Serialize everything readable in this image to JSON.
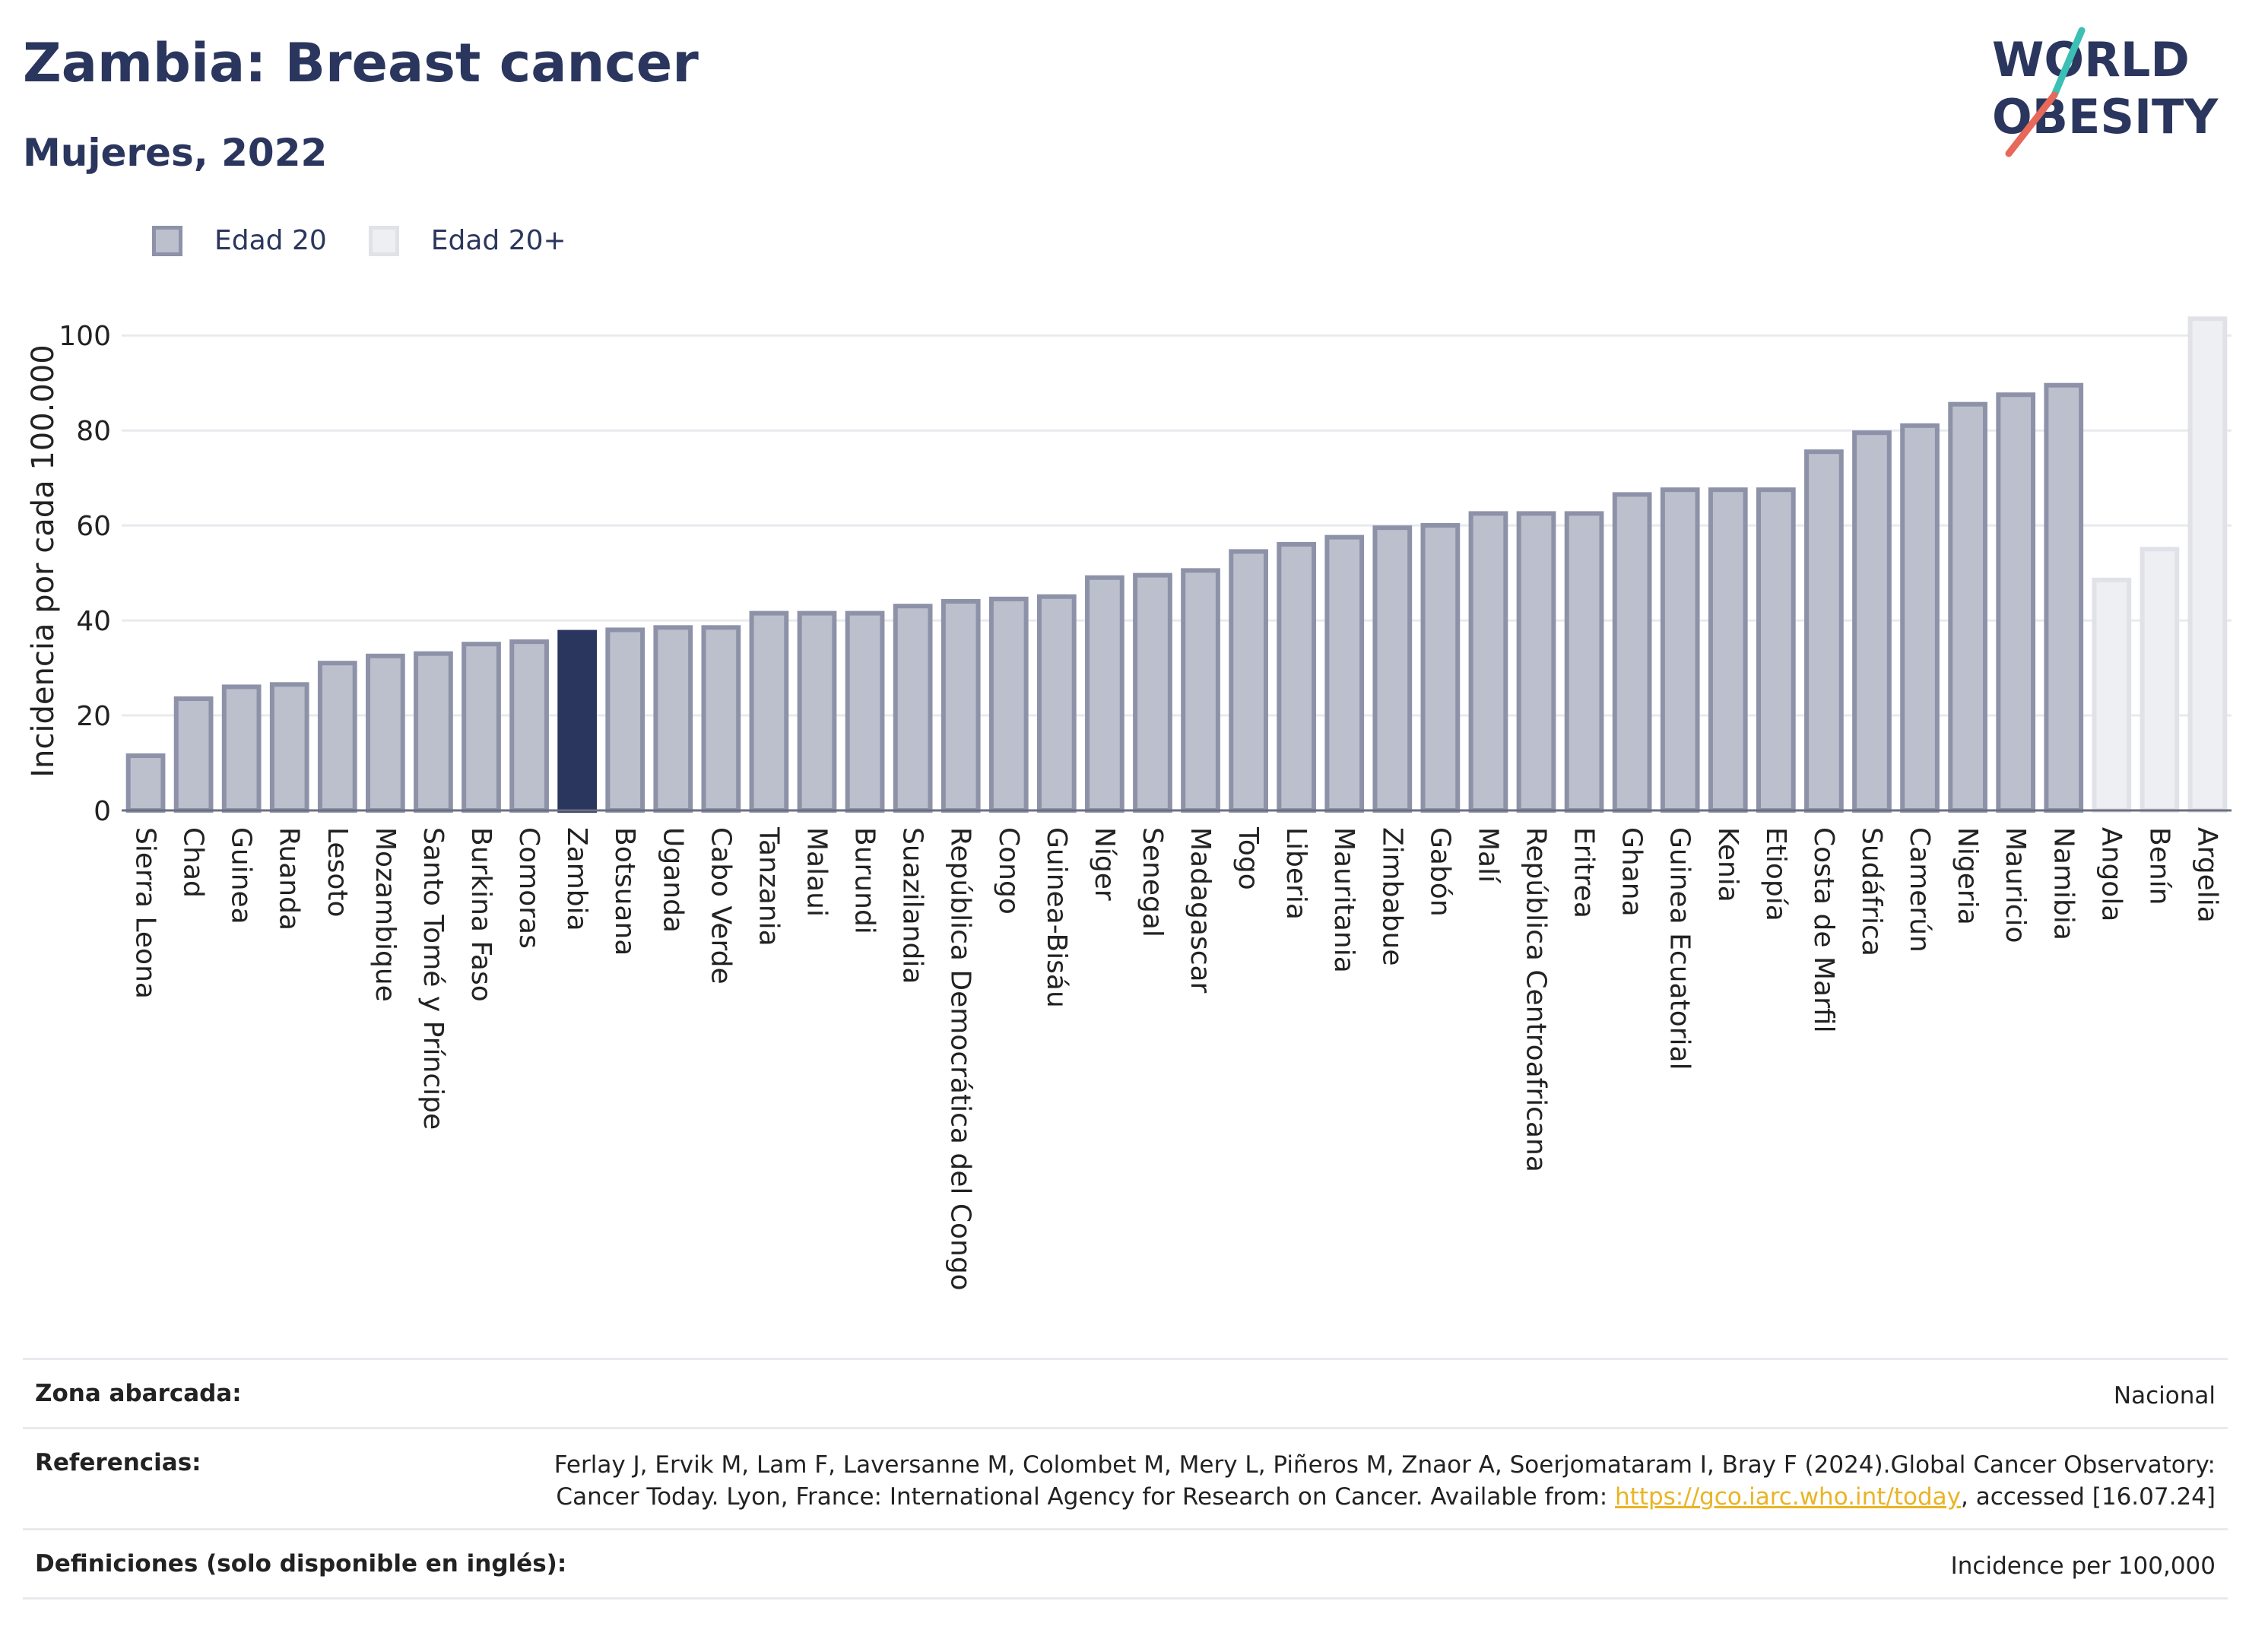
{
  "header": {
    "title": "Zambia: Breast cancer",
    "subtitle": "Mujeres, 2022"
  },
  "logo": {
    "line1": "WORLD",
    "line2": "OBESITY",
    "colors": [
      "#2b365e",
      "#3cbfb4",
      "#e8685a"
    ]
  },
  "legend": [
    {
      "label": "Edad 20",
      "color": "#bcbfcc"
    },
    {
      "label": "Edad 20+",
      "color": "#eeeff3"
    }
  ],
  "chart_data": {
    "type": "bar",
    "ylabel": "Incidencia por cada 100.000",
    "ylim": [
      0,
      105
    ],
    "yticks": [
      0,
      20,
      40,
      60,
      80,
      100
    ],
    "grid": true,
    "legend_position": "top-left",
    "highlight": "Zambia",
    "colors": {
      "main": "#bcbfcc",
      "main_border": "#8d92a8",
      "highlight": "#2b365e",
      "plus": "#eeeff3",
      "plus_border": "#e0e2e8"
    },
    "categories": [
      "Sierra Leona",
      "Chad",
      "Guinea",
      "Ruanda",
      "Lesoto",
      "Mozambique",
      "Santo Tomé y Príncipe",
      "Burkina Faso",
      "Comoras",
      "Zambia",
      "Botsuana",
      "Uganda",
      "Cabo Verde",
      "Tanzania",
      "Malaui",
      "Burundi",
      "Suazilandia",
      "República Democrática del Congo",
      "Congo",
      "Guinea-Bisáu",
      "Níger",
      "Senegal",
      "Madagascar",
      "Togo",
      "Liberia",
      "Mauritania",
      "Zimbabue",
      "Gabón",
      "Malí",
      "República Centroafricana",
      "Eritrea",
      "Ghana",
      "Guinea Ecuatorial",
      "Kenia",
      "Etiopía",
      "Costa de Marfil",
      "Sudáfrica",
      "Camerún",
      "Nigeria",
      "Mauricio",
      "Namibia",
      "Angola",
      "Benín",
      "Argelia"
    ],
    "values": [
      12,
      24,
      26.5,
      27,
      31.5,
      33,
      33.5,
      35.5,
      36,
      38,
      38.5,
      39,
      39,
      42,
      42,
      42,
      43.5,
      44.5,
      45,
      45.5,
      49.5,
      50,
      51,
      55,
      56.5,
      58,
      60,
      60.5,
      63,
      63,
      63,
      67,
      68,
      68,
      68,
      76,
      80,
      81.5,
      86,
      88,
      90,
      49,
      55.5,
      104
    ],
    "series_group": [
      "Edad 20",
      "Edad 20",
      "Edad 20",
      "Edad 20",
      "Edad 20",
      "Edad 20",
      "Edad 20",
      "Edad 20",
      "Edad 20",
      "Edad 20",
      "Edad 20",
      "Edad 20",
      "Edad 20",
      "Edad 20",
      "Edad 20",
      "Edad 20",
      "Edad 20",
      "Edad 20",
      "Edad 20",
      "Edad 20",
      "Edad 20",
      "Edad 20",
      "Edad 20",
      "Edad 20",
      "Edad 20",
      "Edad 20",
      "Edad 20",
      "Edad 20",
      "Edad 20",
      "Edad 20",
      "Edad 20",
      "Edad 20",
      "Edad 20",
      "Edad 20",
      "Edad 20",
      "Edad 20",
      "Edad 20",
      "Edad 20",
      "Edad 20",
      "Edad 20",
      "Edad 20",
      "Edad 20+",
      "Edad 20+",
      "Edad 20+"
    ]
  },
  "meta": {
    "coverage_label": "Zona abarcada:",
    "coverage_value": "Nacional",
    "references_label": "Referencias:",
    "references_text": "Ferlay J, Ervik M, Lam F, Laversanne M, Colombet M, Mery L, Piñeros M, Znaor A, Soerjomataram I, Bray F (2024).Global Cancer Observatory: Cancer Today. Lyon, France: International Agency for Research on Cancer. Available from: ",
    "references_link": "https://gco.iarc.who.int/today",
    "references_suffix": ", accessed [16.07.24]",
    "definitions_label": "Definiciones (solo disponible en inglés):",
    "definitions_value": "Incidence per 100,000"
  }
}
